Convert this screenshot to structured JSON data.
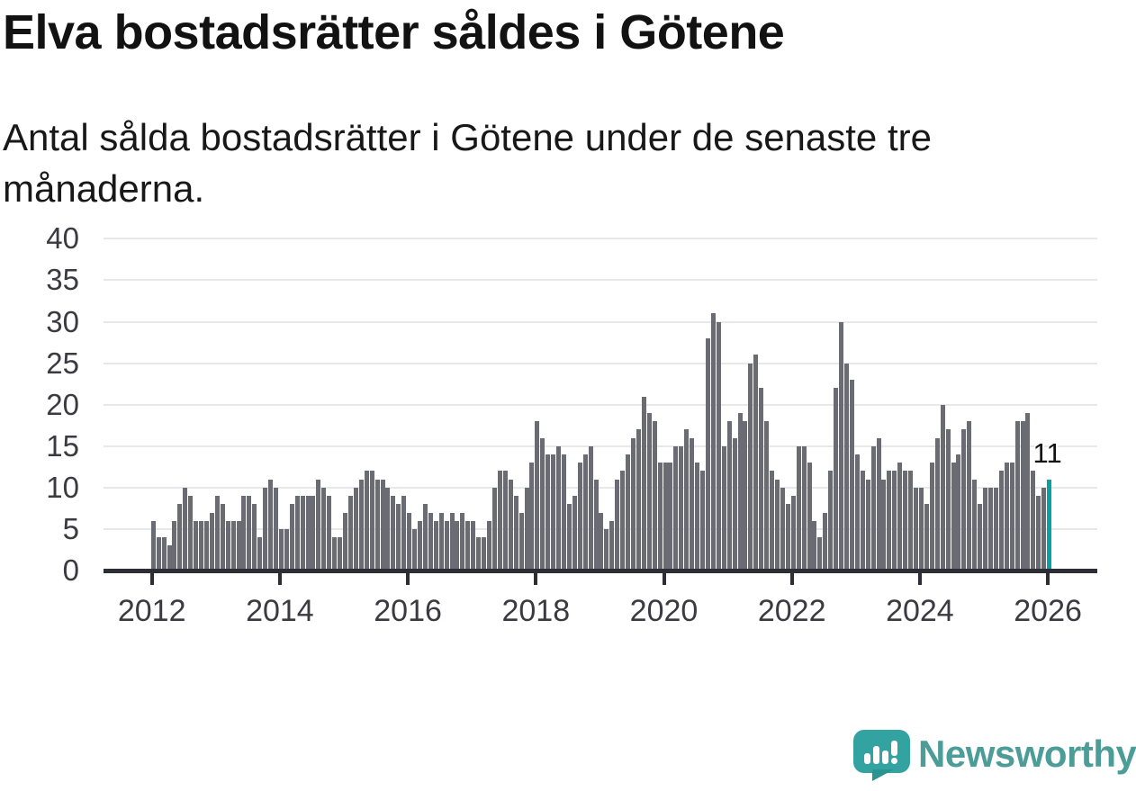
{
  "header": {
    "title": "Elva bostadsrätter såldes i Götene",
    "subtitle": "Antal sålda bostadsrätter i Götene under de senaste tre månaderna."
  },
  "chart_data": {
    "type": "bar",
    "title": "Elva bostadsrätter såldes i Götene",
    "subtitle": "Antal sålda bostadsrätter i Götene under de senaste tre månaderna.",
    "start_month": "2012-01",
    "end_month": "2026-01",
    "frequency": "monthly",
    "ylim": [
      0,
      40
    ],
    "y_ticks": [
      0,
      5,
      10,
      15,
      20,
      25,
      30,
      35,
      40
    ],
    "x_tick_labels": [
      "2012",
      "2014",
      "2016",
      "2018",
      "2020",
      "2022",
      "2024",
      "2026"
    ],
    "grid": "horizontal",
    "bar_color": "#6b6b74",
    "values": [
      6,
      4,
      4,
      3,
      6,
      8,
      10,
      9,
      6,
      6,
      6,
      7,
      9,
      8,
      6,
      6,
      6,
      9,
      9,
      8,
      4,
      10,
      11,
      10,
      5,
      5,
      8,
      9,
      9,
      9,
      9,
      11,
      10,
      9,
      4,
      4,
      7,
      9,
      10,
      11,
      12,
      12,
      11,
      11,
      10,
      9,
      8,
      9,
      7,
      5,
      6,
      8,
      7,
      6,
      7,
      6,
      7,
      6,
      7,
      6,
      6,
      4,
      4,
      6,
      10,
      12,
      12,
      11,
      9,
      7,
      10,
      13,
      18,
      16,
      14,
      14,
      15,
      14,
      8,
      9,
      13,
      14,
      15,
      11,
      7,
      5,
      6,
      11,
      12,
      14,
      16,
      17,
      21,
      19,
      18,
      13,
      13,
      13,
      15,
      15,
      17,
      16,
      13,
      12,
      28,
      31,
      30,
      15,
      18,
      16,
      19,
      18,
      25,
      26,
      22,
      18,
      12,
      11,
      10,
      8,
      9,
      15,
      15,
      13,
      6,
      4,
      7,
      12,
      22,
      30,
      25,
      23,
      14,
      12,
      11,
      15,
      16,
      11,
      12,
      12,
      13,
      12,
      12,
      10,
      10,
      8,
      13,
      16,
      20,
      17,
      13,
      14,
      17,
      18,
      11,
      8,
      10,
      10,
      10,
      12,
      13,
      13,
      18,
      18,
      19,
      12,
      9,
      10,
      11
    ],
    "highlight": {
      "index": 168,
      "value": 11,
      "label": "11",
      "color": "#08a2a4"
    }
  },
  "branding": {
    "name": "Newsworthy",
    "logo_icon": "speech-bubble-bar-chart-exclamation-icon",
    "bubble_color": "#32a3a0",
    "text_color": "#4c9c98"
  }
}
